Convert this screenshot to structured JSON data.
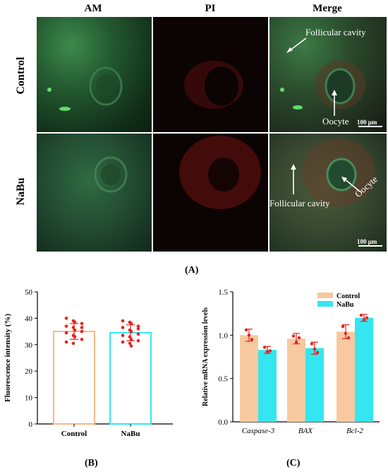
{
  "panel_a": {
    "column_headers": [
      "AM",
      "PI",
      "Merge"
    ],
    "row_headers": [
      "Control",
      "NaBu"
    ],
    "annotations": {
      "control_cavity": "Follicular cavity",
      "control_oocyte": "Oocyte",
      "nabu_cavity": "Follicular cavity",
      "nabu_oocyte": "Oocyte"
    },
    "scale_bar": "100 μm",
    "label": "(A)"
  },
  "panel_b_label": "(B)",
  "panel_c_label": "(C)",
  "colors": {
    "control": "#f8c9a0",
    "control_stroke": "#f5b98a",
    "nabu": "#33e6f0",
    "dots": "#e8221e",
    "am_green": "#2e6b3c",
    "pi_red": "#5a0f0f"
  },
  "chart_data": [
    {
      "type": "bar",
      "ylabel": "Fluorescence intensity (%)",
      "categories": [
        "Control",
        "NaBu"
      ],
      "values": [
        35,
        34.5
      ],
      "error": [
        3,
        3
      ],
      "ylim": [
        0,
        50
      ],
      "yticks": [
        0,
        10,
        20,
        30,
        40,
        50
      ],
      "points": [
        [
          40,
          39,
          38.5,
          38,
          37,
          36.5,
          35.5,
          35,
          34.5,
          33.5,
          33,
          32,
          31,
          30.5,
          35.5,
          36.5
        ],
        [
          39,
          38.5,
          38,
          37,
          36.5,
          35.5,
          35,
          34,
          33.5,
          33,
          32,
          31.5,
          31,
          30.5,
          29.5,
          36
        ]
      ]
    },
    {
      "type": "bar",
      "ylabel": "Relative mRNA expression levels",
      "categories": [
        "Caspase-3",
        "BAX",
        "Bcl-2"
      ],
      "series": [
        {
          "name": "Control",
          "values": [
            1.0,
            0.96,
            1.04
          ],
          "error": [
            0.07,
            0.06,
            0.08
          ]
        },
        {
          "name": "NaBu",
          "values": [
            0.83,
            0.85,
            1.2
          ],
          "error": [
            0.04,
            0.07,
            0.04
          ]
        }
      ],
      "points": [
        [
          [
            1.06,
            1.0,
            0.95
          ],
          [
            0.99,
            0.92,
            0.97
          ],
          [
            1.1,
            1.02,
            0.97
          ]
        ],
        [
          [
            0.86,
            0.81,
            0.82
          ],
          [
            0.9,
            0.84,
            0.8
          ],
          [
            1.23,
            1.18,
            1.2
          ]
        ]
      ],
      "ylim": [
        0,
        1.5
      ],
      "yticks": [
        "0.0",
        "0.5",
        "1.0",
        "1.5"
      ],
      "legend": "top-right"
    }
  ]
}
